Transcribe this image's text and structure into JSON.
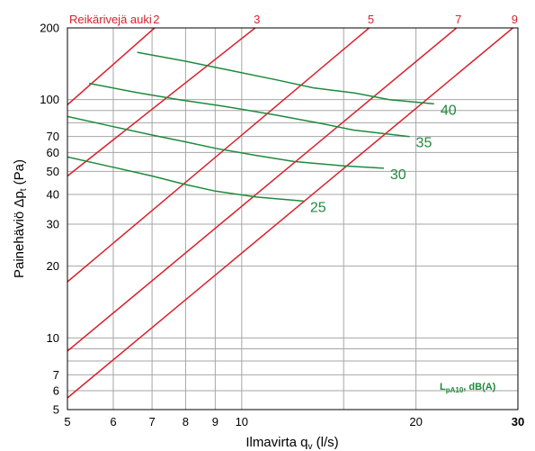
{
  "chart_data": {
    "type": "line",
    "title": "",
    "xlabel": "Ilmavirta q",
    "xlabel_sub": "v",
    "xlabel_unit": " (l/s)",
    "ylabel": "Painehäviö Δp",
    "ylabel_sub": "t",
    "ylabel_unit": " (Pa)",
    "x_scale": "log",
    "y_scale": "log",
    "xlim": [
      5,
      30
    ],
    "ylim": [
      5,
      200
    ],
    "grid": true,
    "x_ticks": [
      5,
      6,
      7,
      8,
      9,
      10,
      20,
      30
    ],
    "x_tick_labels": [
      "5",
      "6",
      "7",
      "8",
      "9",
      "10",
      "20",
      "30"
    ],
    "x_minor_grid": [
      15
    ],
    "y_ticks": [
      5,
      6,
      7,
      10,
      20,
      30,
      40,
      50,
      60,
      70,
      100,
      200
    ],
    "y_tick_labels": [
      "5",
      "6",
      "7",
      "10",
      "20",
      "30",
      "40",
      "50",
      "60",
      "70",
      "100",
      "200"
    ],
    "y_minor_grid": [
      8,
      9,
      80,
      90
    ],
    "open_holes_title": "Reikärivejä auki",
    "series": [
      {
        "name": "2",
        "kind": "open-holes",
        "color": "#d9202b",
        "points": [
          [
            5,
            95.1
          ],
          [
            7.07,
            200
          ]
        ]
      },
      {
        "name": "3",
        "kind": "open-holes",
        "color": "#d9202b",
        "points": [
          [
            5,
            47.8
          ],
          [
            10.55,
            200
          ]
        ]
      },
      {
        "name": "5",
        "kind": "open-holes",
        "color": "#d9202b",
        "points": [
          [
            5,
            17.2
          ],
          [
            16.6,
            200
          ]
        ]
      },
      {
        "name": "7",
        "kind": "open-holes",
        "color": "#d9202b",
        "points": [
          [
            5,
            8.8
          ],
          [
            23.5,
            200
          ]
        ]
      },
      {
        "name": "9",
        "kind": "open-holes",
        "color": "#d9202b",
        "points": [
          [
            5,
            5.6
          ],
          [
            29.4,
            200
          ]
        ]
      },
      {
        "name": "25",
        "kind": "sound-level",
        "color": "#1f8a3c",
        "points": [
          [
            5,
            57.5
          ],
          [
            6,
            52
          ],
          [
            7,
            47.8
          ],
          [
            8,
            44
          ],
          [
            9,
            41.3
          ],
          [
            10.6,
            39
          ],
          [
            12.8,
            37.5
          ]
        ]
      },
      {
        "name": "30",
        "kind": "sound-level",
        "color": "#1f8a3c",
        "points": [
          [
            5,
            85
          ],
          [
            6,
            77
          ],
          [
            7,
            71
          ],
          [
            8,
            66.5
          ],
          [
            9,
            62.5
          ],
          [
            10.5,
            58.5
          ],
          [
            12.3,
            55
          ],
          [
            15,
            52.7
          ],
          [
            17.6,
            51.5
          ]
        ]
      },
      {
        "name": "35",
        "kind": "sound-level",
        "color": "#1f8a3c",
        "points": [
          [
            5.45,
            117
          ],
          [
            6.6,
            107
          ],
          [
            7.8,
            100
          ],
          [
            9.3,
            93.8
          ],
          [
            11.5,
            86
          ],
          [
            13.8,
            79.2
          ],
          [
            15.6,
            74.5
          ],
          [
            19.5,
            70
          ]
        ]
      },
      {
        "name": "40",
        "kind": "sound-level",
        "color": "#1f8a3c",
        "points": [
          [
            6.6,
            158
          ],
          [
            8,
            145
          ],
          [
            9.5,
            133
          ],
          [
            11.5,
            121
          ],
          [
            13.3,
            112
          ],
          [
            15.7,
            106.5
          ],
          [
            18,
            100
          ],
          [
            21.5,
            96
          ]
        ]
      }
    ],
    "sound_label": "L",
    "sound_label_sub": "pA10",
    "sound_label_unit": ", dB(A)",
    "colors": {
      "open_holes": "#d9202b",
      "sound_level": "#1f8a3c",
      "grid": "#a6a6a6",
      "axis": "#000000"
    }
  }
}
